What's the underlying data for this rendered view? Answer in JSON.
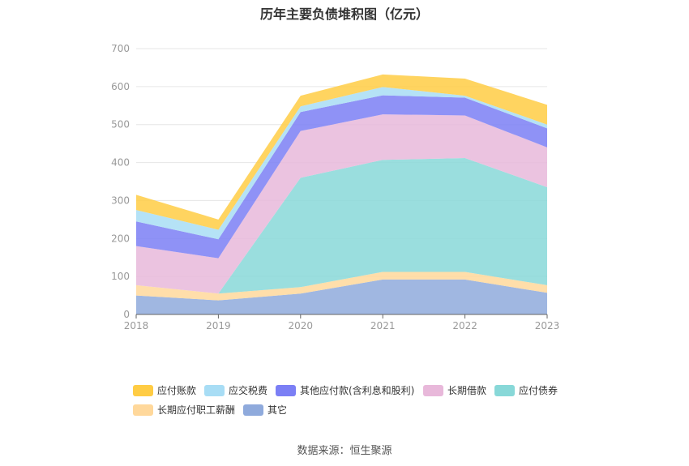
{
  "chart_data": {
    "type": "area",
    "stacked": true,
    "title": "历年主要负债堆积图（亿元）",
    "categories": [
      "2018",
      "2019",
      "2020",
      "2021",
      "2022",
      "2023"
    ],
    "ylim": [
      0,
      700
    ],
    "yticks": [
      0,
      100,
      200,
      300,
      400,
      500,
      600,
      700
    ],
    "grid": true,
    "legend_position": "bottom",
    "series": [
      {
        "name": "其它",
        "color": "#8faadc",
        "values": [
          50,
          37,
          55,
          92,
          92,
          57
        ]
      },
      {
        "name": "长期应付职工薪酬",
        "color": "#ffd89b",
        "values": [
          27,
          18,
          17,
          20,
          20,
          20
        ]
      },
      {
        "name": "应付债券",
        "color": "#88d8d8",
        "values": [
          0,
          0,
          288,
          295,
          300,
          258
        ]
      },
      {
        "name": "长期借款",
        "color": "#e8b8da",
        "values": [
          103,
          93,
          123,
          120,
          112,
          105
        ]
      },
      {
        "name": "其他应付款(含利息和股利)",
        "color": "#7b7ff5",
        "values": [
          65,
          50,
          50,
          50,
          47,
          50
        ]
      },
      {
        "name": "应交税费",
        "color": "#a8ddf5",
        "values": [
          30,
          25,
          15,
          22,
          5,
          10
        ]
      },
      {
        "name": "应付账款",
        "color": "#ffcc44",
        "values": [
          40,
          27,
          28,
          33,
          45,
          52
        ]
      }
    ],
    "legend_order": [
      "应付账款",
      "应交税费",
      "其他应付款(含利息和股利)",
      "长期借款",
      "应付债券",
      "长期应付职工薪酬",
      "其它"
    ]
  },
  "source_text": "数据来源：恒生聚源"
}
